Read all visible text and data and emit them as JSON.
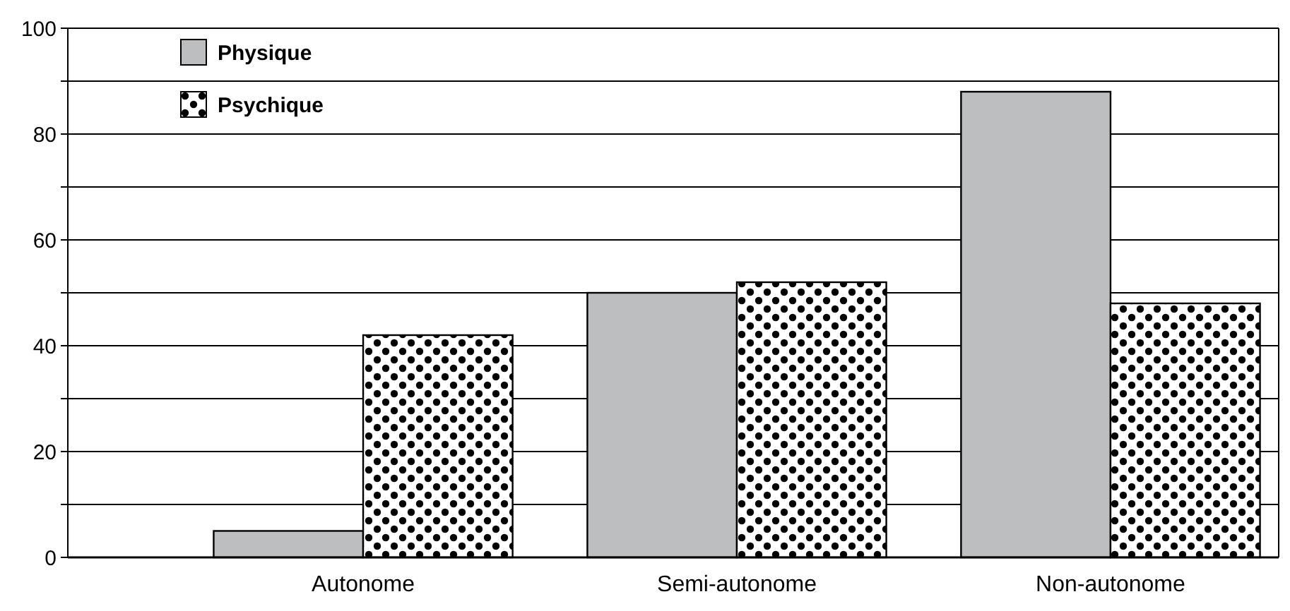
{
  "chart_data": {
    "type": "bar",
    "categories": [
      "Autonome",
      "Semi-autonome",
      "Non-autonome"
    ],
    "series": [
      {
        "name": "Physique",
        "color": "#bcbec0",
        "values": [
          5,
          50,
          88
        ]
      },
      {
        "name": "Psychique",
        "color": "#000000",
        "values": [
          42,
          52,
          48
        ]
      }
    ],
    "ylim": [
      0,
      100
    ],
    "yticks": [
      0,
      {
        "value": 10,
        "label": null
      },
      20,
      {
        "value": 30,
        "label": null
      },
      40,
      {
        "value": 50,
        "label": null
      },
      60,
      {
        "value": 70,
        "label": null
      },
      80,
      {
        "value": 90,
        "label": null
      },
      100
    ],
    "grid": "y",
    "legend": "top left"
  }
}
